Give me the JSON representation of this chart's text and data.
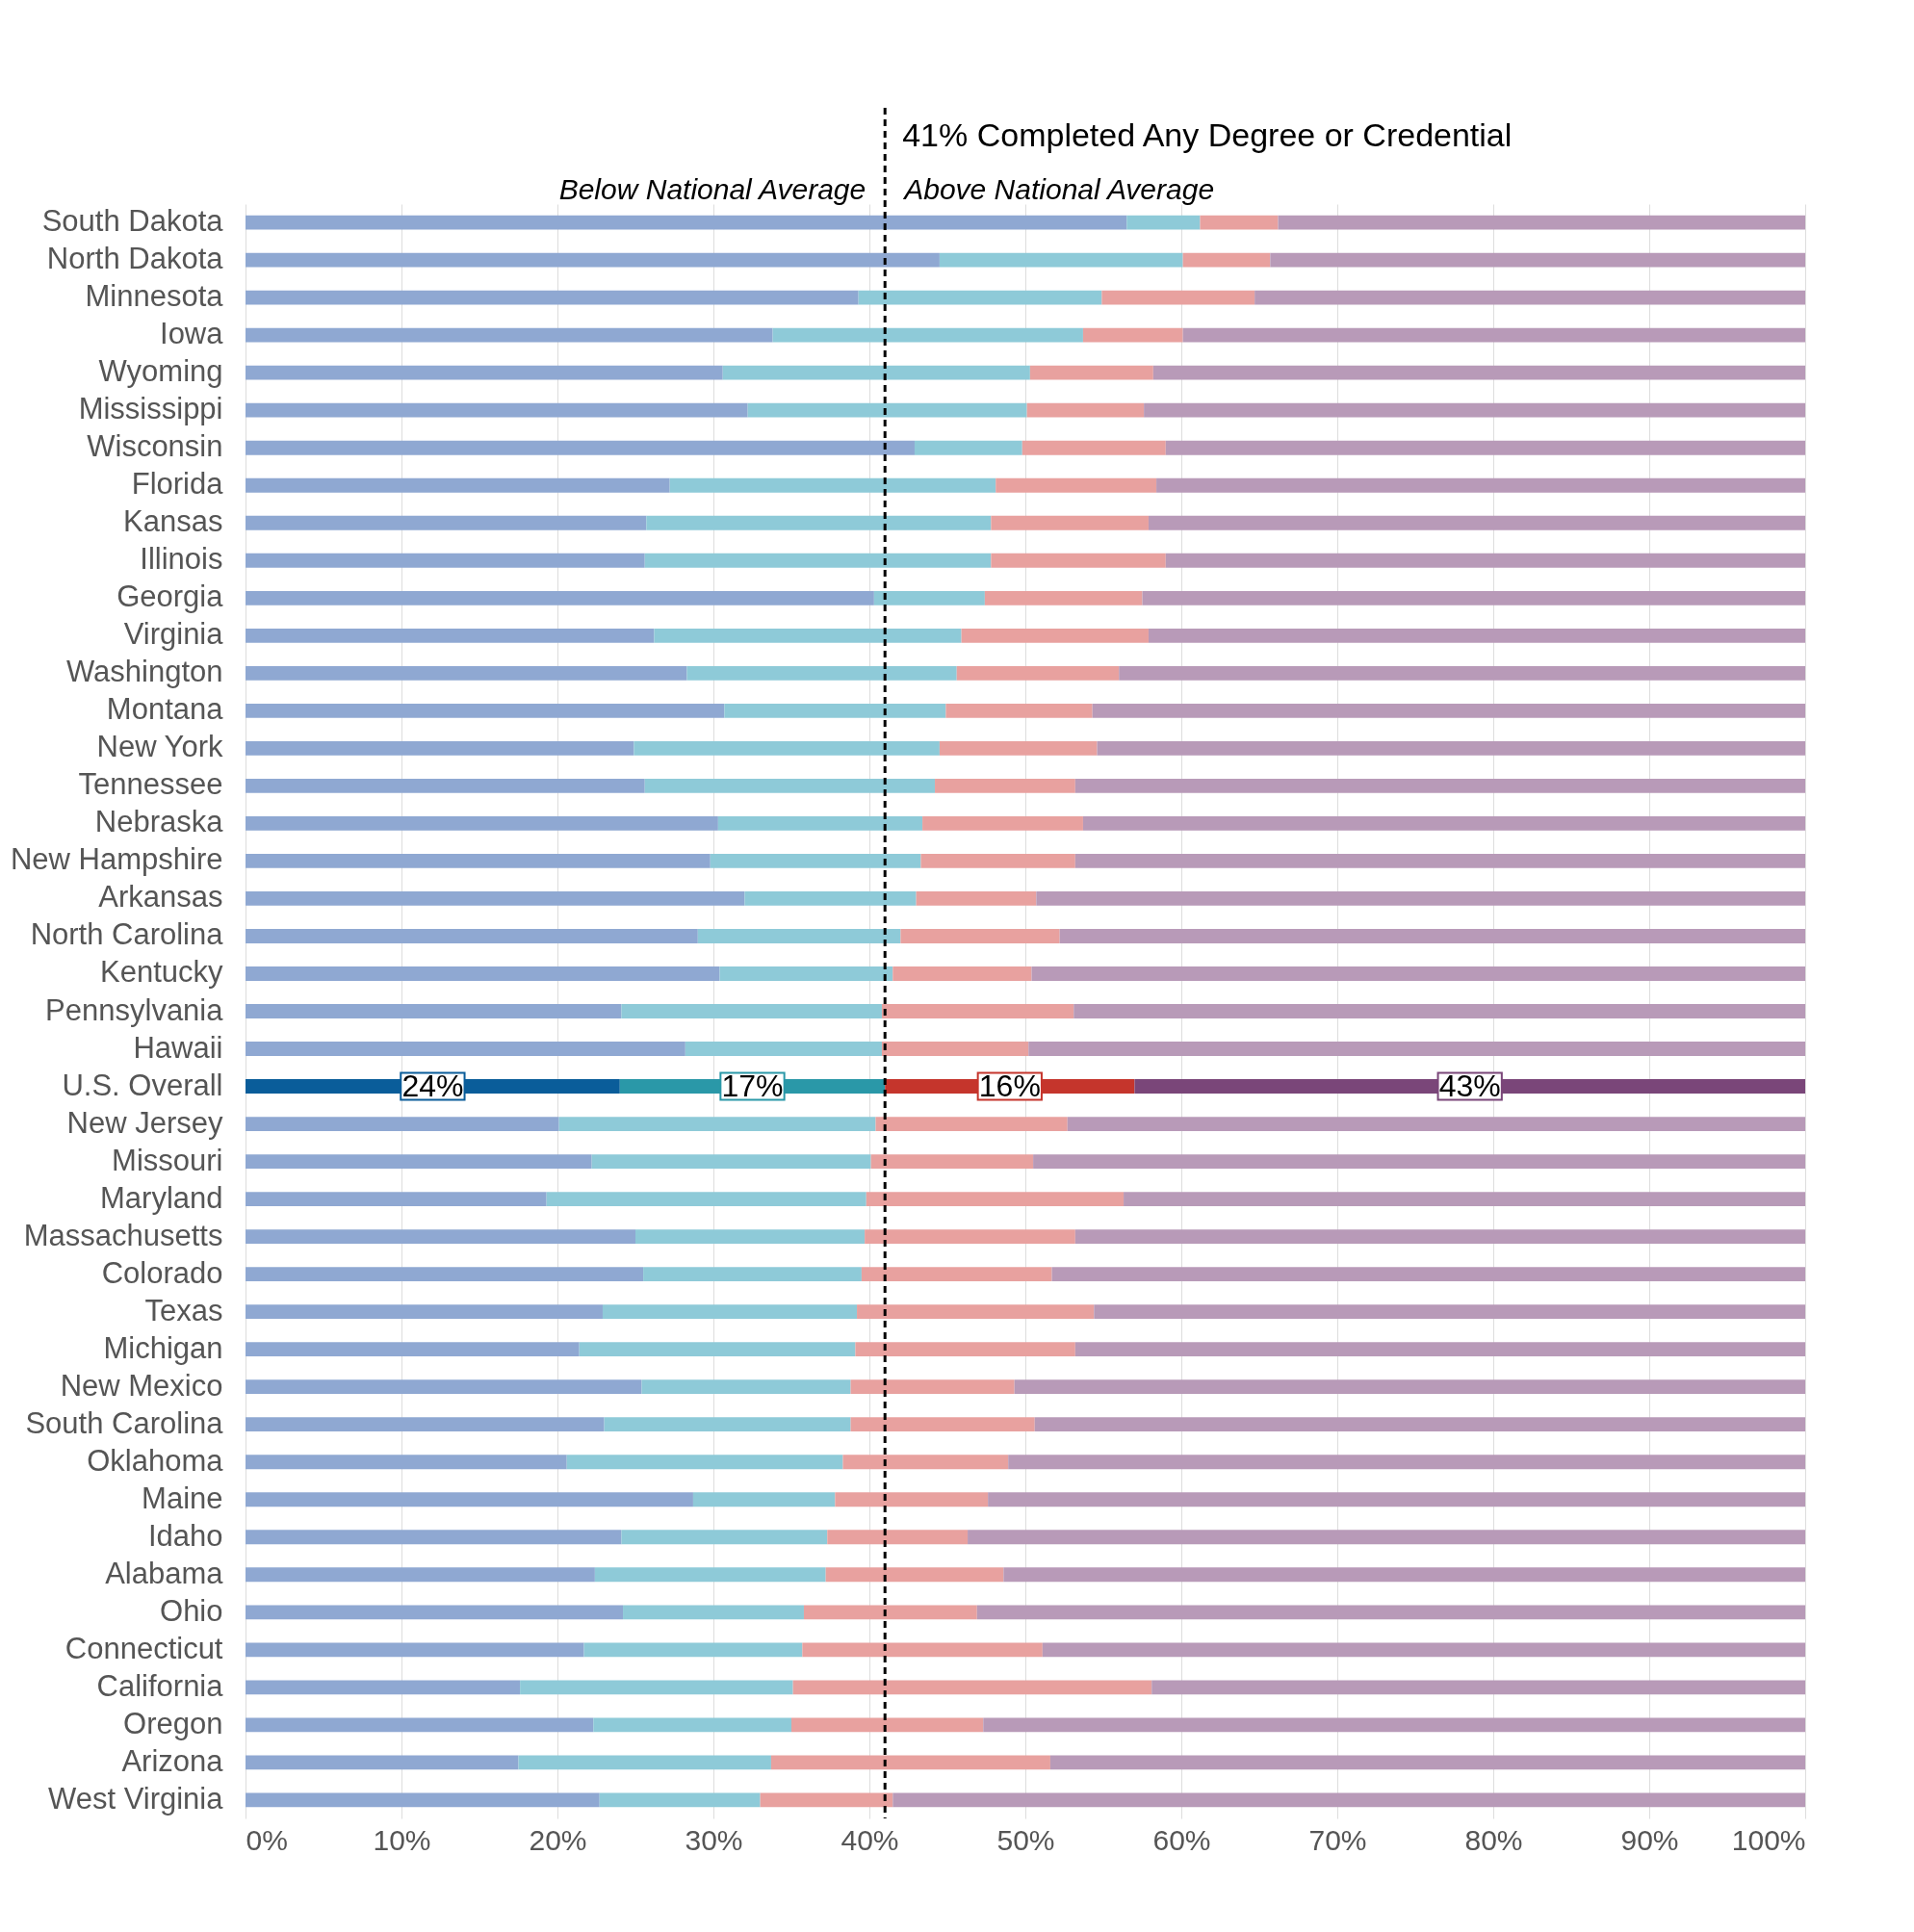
{
  "chart_data": {
    "type": "bar",
    "orientation": "horizontal",
    "stacked": true,
    "categories": [
      "South Dakota",
      "North Dakota",
      "Minnesota",
      "Iowa",
      "Wyoming",
      "Mississippi",
      "Wisconsin",
      "Florida",
      "Kansas",
      "Illinois",
      "Georgia",
      "Virginia",
      "Washington",
      "Montana",
      "New York",
      "Tennessee",
      "Nebraska",
      "New Hampshire",
      "Arkansas",
      "North Carolina",
      "Kentucky",
      "Pennsylvania",
      "Hawaii",
      "U.S. Overall",
      "New Jersey",
      "Missouri",
      "Maryland",
      "Massachusetts",
      "Colorado",
      "Texas",
      "Michigan",
      "New Mexico",
      "South Carolina",
      "Oklahoma",
      "Maine",
      "Idaho",
      "Alabama",
      "Ohio",
      "Connecticut",
      "California",
      "Oregon",
      "Arizona",
      "West Virginia"
    ],
    "series": [
      {
        "colors": [
          "#8fa8d2",
          "#8fa8d2",
          "#8fa8d2",
          "#8fa8d2",
          "#8fa8d2",
          "#8fa8d2",
          "#8fa8d2",
          "#8fa8d2",
          "#8fa8d2",
          "#8fa8d2",
          "#8fa8d2",
          "#8fa8d2",
          "#8fa8d2",
          "#8fa8d2",
          "#8fa8d2",
          "#8fa8d2",
          "#8fa8d2",
          "#8fa8d2",
          "#8fa8d2",
          "#8fa8d2",
          "#8fa8d2",
          "#8fa8d2",
          "#8fa8d2",
          "#0a5d9a",
          "#8fa8d2",
          "#8fa8d2",
          "#8fa8d2",
          "#8fa8d2",
          "#8fa8d2",
          "#8fa8d2",
          "#8fa8d2",
          "#8fa8d2",
          "#8fa8d2",
          "#8fa8d2",
          "#8fa8d2",
          "#8fa8d2",
          "#8fa8d2",
          "#8fa8d2",
          "#8fa8d2",
          "#8fa8d2",
          "#8fa8d2",
          "#8fa8d2",
          "#8fa8d2"
        ],
        "values": [
          56.5,
          44.5,
          39.3,
          33.8,
          30.6,
          32.2,
          42.9,
          27.2,
          25.7,
          25.6,
          40.3,
          26.2,
          28.3,
          30.7,
          24.9,
          25.6,
          30.3,
          29.8,
          32.0,
          29.0,
          30.4,
          24.1,
          28.2,
          24,
          20.1,
          22.2,
          19.3,
          25.0,
          25.5,
          22.9,
          21.4,
          25.4,
          23.0,
          20.6,
          28.7,
          24.1,
          22.4,
          24.2,
          21.7,
          17.6,
          22.3,
          17.5,
          22.7
        ],
        "value_labels": [
          null,
          null,
          null,
          null,
          null,
          null,
          null,
          null,
          null,
          null,
          null,
          null,
          null,
          null,
          null,
          null,
          null,
          null,
          null,
          null,
          null,
          null,
          null,
          "24%",
          null,
          null,
          null,
          null,
          null,
          null,
          null,
          null,
          null,
          null,
          null,
          null,
          null,
          null,
          null,
          null,
          null,
          null,
          null
        ]
      },
      {
        "colors": [
          "#8ecad8",
          "#8ecad8",
          "#8ecad8",
          "#8ecad8",
          "#8ecad8",
          "#8ecad8",
          "#8ecad8",
          "#8ecad8",
          "#8ecad8",
          "#8ecad8",
          "#8ecad8",
          "#8ecad8",
          "#8ecad8",
          "#8ecad8",
          "#8ecad8",
          "#8ecad8",
          "#8ecad8",
          "#8ecad8",
          "#8ecad8",
          "#8ecad8",
          "#8ecad8",
          "#8ecad8",
          "#8ecad8",
          "#2a98a8",
          "#8ecad8",
          "#8ecad8",
          "#8ecad8",
          "#8ecad8",
          "#8ecad8",
          "#8ecad8",
          "#8ecad8",
          "#8ecad8",
          "#8ecad8",
          "#8ecad8",
          "#8ecad8",
          "#8ecad8",
          "#8ecad8",
          "#8ecad8",
          "#8ecad8",
          "#8ecad8",
          "#8ecad8",
          "#8ecad8",
          "#8ecad8"
        ],
        "values": [
          4.7,
          15.6,
          15.6,
          19.9,
          19.7,
          17.9,
          6.9,
          20.9,
          22.1,
          22.2,
          7.1,
          19.7,
          17.3,
          14.2,
          19.6,
          18.6,
          13.1,
          13.5,
          11.0,
          13.0,
          11.1,
          16.7,
          12.6,
          17,
          20.3,
          17.9,
          20.5,
          14.7,
          14.0,
          16.3,
          17.7,
          13.4,
          15.8,
          17.7,
          9.1,
          13.2,
          14.8,
          11.6,
          14.0,
          17.5,
          12.7,
          16.2,
          10.3
        ],
        "value_labels": [
          null,
          null,
          null,
          null,
          null,
          null,
          null,
          null,
          null,
          null,
          null,
          null,
          null,
          null,
          null,
          null,
          null,
          null,
          null,
          null,
          null,
          null,
          null,
          "17%",
          null,
          null,
          null,
          null,
          null,
          null,
          null,
          null,
          null,
          null,
          null,
          null,
          null,
          null,
          null,
          null,
          null,
          null,
          null
        ]
      },
      {
        "colors": [
          "#e8a19f",
          "#e8a19f",
          "#e8a19f",
          "#e8a19f",
          "#e8a19f",
          "#e8a19f",
          "#e8a19f",
          "#e8a19f",
          "#e8a19f",
          "#e8a19f",
          "#e8a19f",
          "#e8a19f",
          "#e8a19f",
          "#e8a19f",
          "#e8a19f",
          "#e8a19f",
          "#e8a19f",
          "#e8a19f",
          "#e8a19f",
          "#e8a19f",
          "#e8a19f",
          "#e8a19f",
          "#e8a19f",
          "#c5352c",
          "#e8a19f",
          "#e8a19f",
          "#e8a19f",
          "#e8a19f",
          "#e8a19f",
          "#e8a19f",
          "#e8a19f",
          "#e8a19f",
          "#e8a19f",
          "#e8a19f",
          "#e8a19f",
          "#e8a19f",
          "#e8a19f",
          "#e8a19f",
          "#e8a19f",
          "#e8a19f",
          "#e8a19f",
          "#e8a19f",
          "#e8a19f"
        ],
        "values": [
          5.0,
          5.6,
          9.8,
          6.4,
          7.9,
          7.5,
          9.2,
          10.3,
          10.1,
          11.2,
          10.1,
          12.0,
          10.4,
          9.4,
          10.1,
          9.0,
          10.3,
          9.9,
          7.7,
          10.2,
          8.9,
          12.3,
          9.4,
          16,
          12.3,
          10.4,
          16.5,
          13.5,
          12.2,
          15.2,
          14.1,
          10.5,
          11.8,
          10.6,
          9.8,
          9.0,
          11.4,
          11.1,
          15.4,
          23.0,
          12.3,
          17.9,
          8.5
        ],
        "value_labels": [
          null,
          null,
          null,
          null,
          null,
          null,
          null,
          null,
          null,
          null,
          null,
          null,
          null,
          null,
          null,
          null,
          null,
          null,
          null,
          null,
          null,
          null,
          null,
          "16%",
          null,
          null,
          null,
          null,
          null,
          null,
          null,
          null,
          null,
          null,
          null,
          null,
          null,
          null,
          null,
          null,
          null,
          null,
          null
        ]
      },
      {
        "colors": [
          "#b89ab8",
          "#b89ab8",
          "#b89ab8",
          "#b89ab8",
          "#b89ab8",
          "#b89ab8",
          "#b89ab8",
          "#b89ab8",
          "#b89ab8",
          "#b89ab8",
          "#b89ab8",
          "#b89ab8",
          "#b89ab8",
          "#b89ab8",
          "#b89ab8",
          "#b89ab8",
          "#b89ab8",
          "#b89ab8",
          "#b89ab8",
          "#b89ab8",
          "#b89ab8",
          "#b89ab8",
          "#b89ab8",
          "#7a4679",
          "#b89ab8",
          "#b89ab8",
          "#b89ab8",
          "#b89ab8",
          "#b89ab8",
          "#b89ab8",
          "#b89ab8",
          "#b89ab8",
          "#b89ab8",
          "#b89ab8",
          "#b89ab8",
          "#b89ab8",
          "#b89ab8",
          "#b89ab8",
          "#b89ab8",
          "#b89ab8",
          "#b89ab8",
          "#b89ab8",
          "#b89ab8"
        ],
        "values": [
          33.8,
          34.3,
          35.3,
          39.9,
          41.8,
          42.4,
          41.0,
          41.6,
          42.1,
          41.0,
          42.5,
          42.1,
          44.0,
          45.7,
          45.4,
          46.8,
          46.3,
          46.8,
          49.3,
          47.8,
          49.6,
          46.9,
          49.8,
          43,
          47.3,
          49.5,
          43.7,
          46.8,
          48.3,
          45.6,
          46.8,
          50.7,
          49.4,
          51.1,
          52.4,
          53.7,
          51.4,
          53.1,
          48.9,
          41.9,
          52.7,
          48.4,
          58.5
        ],
        "value_labels": [
          null,
          null,
          null,
          null,
          null,
          null,
          null,
          null,
          null,
          null,
          null,
          null,
          null,
          null,
          null,
          null,
          null,
          null,
          null,
          null,
          null,
          null,
          null,
          "43%",
          null,
          null,
          null,
          null,
          null,
          null,
          null,
          null,
          null,
          null,
          null,
          null,
          null,
          null,
          null,
          null,
          null,
          null,
          null
        ]
      }
    ],
    "xlim": [
      0,
      100
    ],
    "xticks": [
      {
        "value": 0,
        "label": "0%"
      },
      {
        "value": 10,
        "label": "10%"
      },
      {
        "value": 20,
        "label": "20%"
      },
      {
        "value": 30,
        "label": "30%"
      },
      {
        "value": 40,
        "label": "40%"
      },
      {
        "value": 50,
        "label": "50%"
      },
      {
        "value": 60,
        "label": "60%"
      },
      {
        "value": 70,
        "label": "70%"
      },
      {
        "value": 80,
        "label": "80%"
      },
      {
        "value": 90,
        "label": "90%"
      },
      {
        "value": 100,
        "label": "100%"
      }
    ],
    "grid": "x",
    "ref_lines": [
      {
        "axis": "x",
        "value": 41,
        "label": "41% Completed Any Degree or Credential",
        "line_style": "dashed",
        "color": "#000000"
      }
    ],
    "annotations": [
      "Below National Average",
      "Above National Average"
    ]
  }
}
